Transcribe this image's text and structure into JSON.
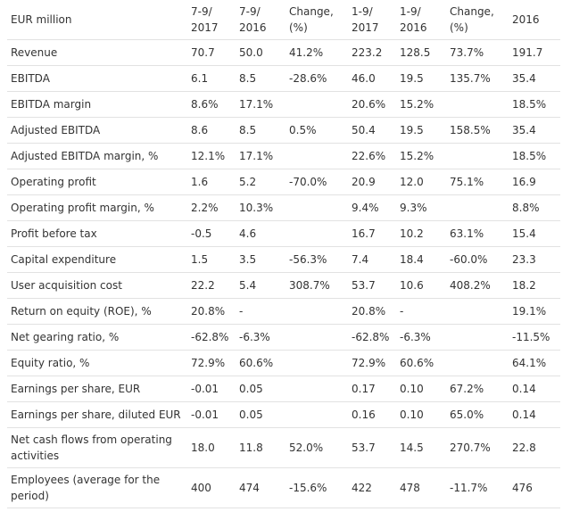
{
  "table": {
    "headers": [
      "EUR million",
      "7-9/ 2017",
      "7-9/ 2016",
      "Change, (%)",
      "1-9/ 2017",
      "1-9/ 2016",
      "Change, (%)",
      "2016"
    ],
    "rows": [
      {
        "label": "Revenue",
        "values": [
          "70.7",
          "50.0",
          "41.2%",
          "223.2",
          "128.5",
          "73.7%",
          "191.7"
        ]
      },
      {
        "label": "EBITDA",
        "values": [
          "6.1",
          "8.5",
          "-28.6%",
          "46.0",
          "19.5",
          "135.7%",
          "35.4"
        ]
      },
      {
        "label": "EBITDA margin",
        "values": [
          "8.6%",
          "17.1%",
          "",
          "20.6%",
          "15.2%",
          "",
          "18.5%"
        ]
      },
      {
        "label": "Adjusted EBITDA",
        "values": [
          "8.6",
          "8.5",
          "0.5%",
          "50.4",
          "19.5",
          "158.5%",
          "35.4"
        ]
      },
      {
        "label": "Adjusted EBITDA margin, %",
        "values": [
          "12.1%",
          "17.1%",
          "",
          "22.6%",
          "15.2%",
          "",
          "18.5%"
        ]
      },
      {
        "label": "Operating profit",
        "values": [
          "1.6",
          "5.2",
          "-70.0%",
          "20.9",
          "12.0",
          "75.1%",
          "16.9"
        ]
      },
      {
        "label": "Operating profit margin, %",
        "values": [
          "2.2%",
          "10.3%",
          "",
          "9.4%",
          "9.3%",
          "",
          "8.8%"
        ]
      },
      {
        "label": "Profit before tax",
        "values": [
          "-0.5",
          "4.6",
          "",
          "16.7",
          "10.2",
          "63.1%",
          "15.4"
        ]
      },
      {
        "label": "Capital expenditure",
        "values": [
          "1.5",
          "3.5",
          "-56.3%",
          "7.4",
          "18.4",
          "-60.0%",
          "23.3"
        ]
      },
      {
        "label": "User acquisition cost",
        "values": [
          "22.2",
          "5.4",
          "308.7%",
          "53.7",
          "10.6",
          "408.2%",
          "18.2"
        ]
      },
      {
        "label": "Return on equity (ROE), %",
        "values": [
          "20.8%",
          "-",
          "",
          "20.8%",
          "-",
          "",
          "19.1%"
        ]
      },
      {
        "label": "Net gearing ratio, %",
        "values": [
          "-62.8%",
          "-6.3%",
          "",
          "-62.8%",
          "-6.3%",
          "",
          "-11.5%"
        ]
      },
      {
        "label": "Equity ratio, %",
        "values": [
          "72.9%",
          "60.6%",
          "",
          "72.9%",
          "60.6%",
          "",
          "64.1%"
        ]
      },
      {
        "label": "Earnings per share, EUR",
        "values": [
          "-0.01",
          "0.05",
          "",
          "0.17",
          "0.10",
          "67.2%",
          "0.14"
        ]
      },
      {
        "label": "Earnings per share, diluted EUR",
        "values": [
          "-0.01",
          "0.05",
          "",
          "0.16",
          "0.10",
          "65.0%",
          "0.14"
        ]
      },
      {
        "label": "Net cash flows from operating activities",
        "values": [
          "18.0",
          "11.8",
          "52.0%",
          "53.7",
          "14.5",
          "270.7%",
          "22.8"
        ]
      },
      {
        "label": "Employees (average for the period)",
        "values": [
          "400",
          "474",
          "-15.6%",
          "422",
          "478",
          "-11.7%",
          "476"
        ]
      }
    ]
  }
}
